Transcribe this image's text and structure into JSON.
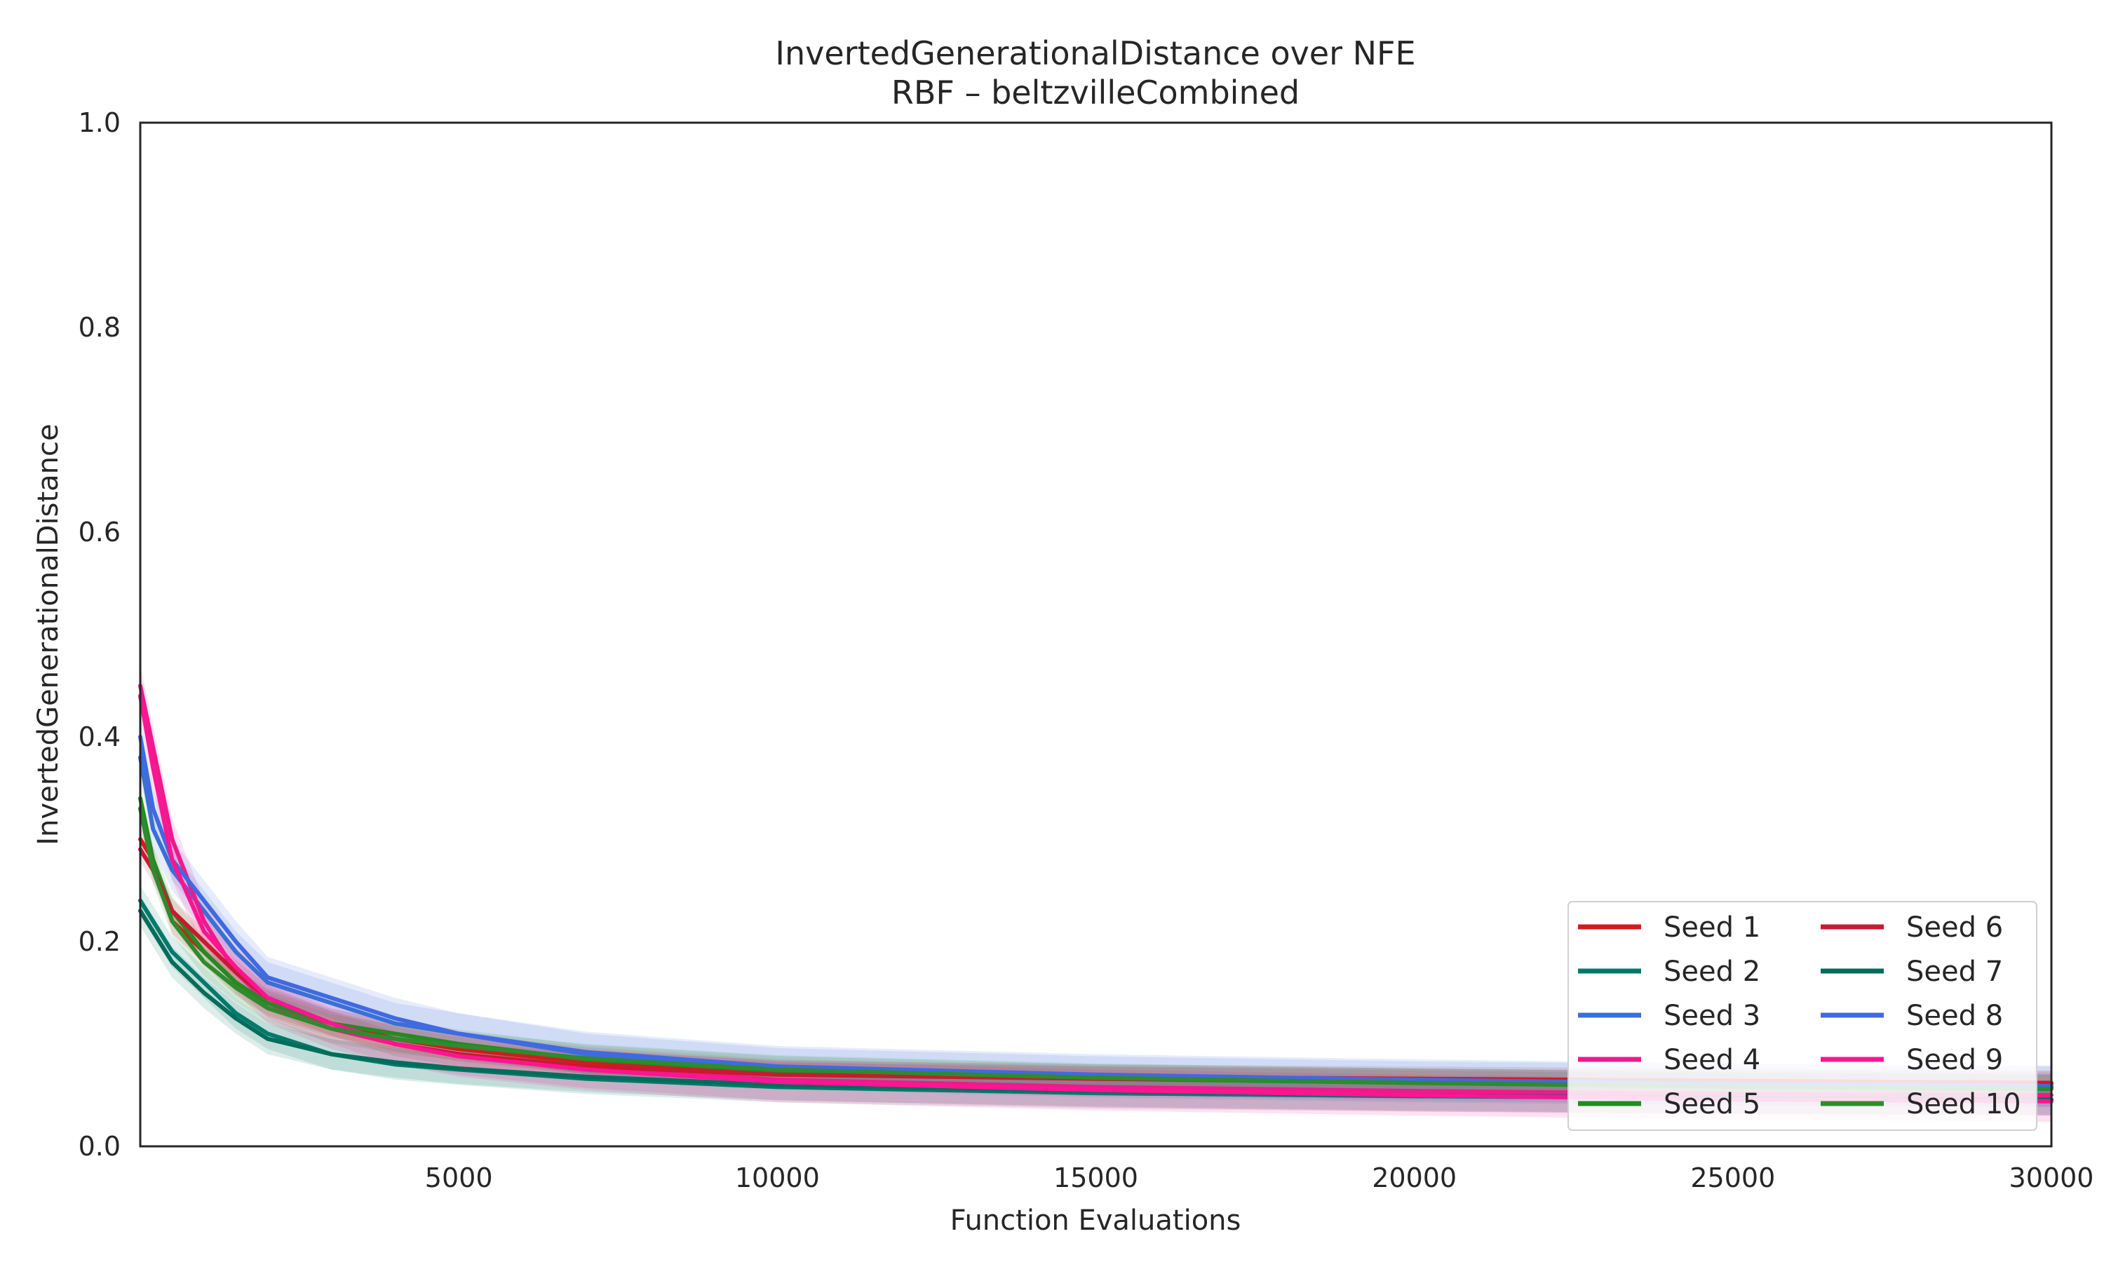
{
  "chart_data": {
    "type": "line",
    "title": "InvertedGenerationalDistance over NFE",
    "subtitle": "RBF – beltzvilleCombined",
    "xlabel": "Function Evaluations",
    "ylabel": "InvertedGenerationalDistance",
    "xlim": [
      0,
      30000
    ],
    "ylim": [
      0,
      1.0
    ],
    "xticks": [
      5000,
      10000,
      15000,
      20000,
      25000,
      30000
    ],
    "yticks": [
      0.0,
      0.2,
      0.4,
      0.6,
      0.8,
      1.0
    ],
    "xtick_labels": [
      "5000",
      "10000",
      "15000",
      "20000",
      "25000",
      "30000"
    ],
    "ytick_labels": [
      "0.0",
      "0.2",
      "0.4",
      "0.6",
      "0.8",
      "1.0"
    ],
    "grid": false,
    "legend_position": "lower-right",
    "legend_columns": 2,
    "x": [
      0,
      200,
      500,
      1000,
      1500,
      2000,
      3000,
      4000,
      5000,
      7000,
      10000,
      15000,
      20000,
      25000,
      30000
    ],
    "series": [
      {
        "name": "Seed 1",
        "color": "#d7191c",
        "band": 0.012,
        "values": [
          0.3,
          0.28,
          0.22,
          0.19,
          0.16,
          0.14,
          0.12,
          0.105,
          0.095,
          0.082,
          0.072,
          0.068,
          0.066,
          0.064,
          0.062
        ]
      },
      {
        "name": "Seed 2",
        "color": "#00796b",
        "band": 0.015,
        "values": [
          0.24,
          0.22,
          0.19,
          0.16,
          0.13,
          0.11,
          0.09,
          0.08,
          0.075,
          0.066,
          0.058,
          0.052,
          0.049,
          0.047,
          0.046
        ]
      },
      {
        "name": "Seed 3",
        "color": "#3b6fd6",
        "band": 0.02,
        "values": [
          0.38,
          0.31,
          0.27,
          0.23,
          0.19,
          0.16,
          0.14,
          0.12,
          0.11,
          0.09,
          0.076,
          0.068,
          0.063,
          0.06,
          0.058
        ]
      },
      {
        "name": "Seed 4",
        "color": "#ee1a8c",
        "band": 0.02,
        "values": [
          0.45,
          0.39,
          0.3,
          0.22,
          0.17,
          0.14,
          0.115,
          0.1,
          0.09,
          0.077,
          0.065,
          0.058,
          0.054,
          0.051,
          0.05
        ]
      },
      {
        "name": "Seed 5",
        "color": "#228b22",
        "band": 0.014,
        "values": [
          0.34,
          0.28,
          0.23,
          0.19,
          0.16,
          0.14,
          0.12,
          0.11,
          0.1,
          0.085,
          0.074,
          0.066,
          0.062,
          0.059,
          0.057
        ]
      },
      {
        "name": "Seed 6",
        "color": "#c81a30",
        "band": 0.012,
        "values": [
          0.29,
          0.27,
          0.23,
          0.2,
          0.17,
          0.145,
          0.12,
          0.1,
          0.09,
          0.078,
          0.07,
          0.066,
          0.064,
          0.062,
          0.061
        ]
      },
      {
        "name": "Seed 7",
        "color": "#006d5b",
        "band": 0.015,
        "values": [
          0.23,
          0.21,
          0.18,
          0.15,
          0.125,
          0.105,
          0.09,
          0.082,
          0.076,
          0.068,
          0.06,
          0.054,
          0.05,
          0.047,
          0.045
        ]
      },
      {
        "name": "Seed 8",
        "color": "#4169e1",
        "band": 0.02,
        "values": [
          0.4,
          0.33,
          0.28,
          0.24,
          0.2,
          0.165,
          0.145,
          0.125,
          0.11,
          0.092,
          0.078,
          0.07,
          0.065,
          0.061,
          0.059
        ]
      },
      {
        "name": "Seed 9",
        "color": "#ff1493",
        "band": 0.02,
        "values": [
          0.44,
          0.37,
          0.28,
          0.21,
          0.175,
          0.145,
          0.12,
          0.1,
          0.088,
          0.075,
          0.063,
          0.055,
          0.05,
          0.046,
          0.044
        ]
      },
      {
        "name": "Seed 10",
        "color": "#2e8b2e",
        "band": 0.014,
        "values": [
          0.33,
          0.27,
          0.22,
          0.18,
          0.155,
          0.135,
          0.115,
          0.105,
          0.098,
          0.086,
          0.075,
          0.067,
          0.062,
          0.058,
          0.056
        ]
      }
    ]
  }
}
